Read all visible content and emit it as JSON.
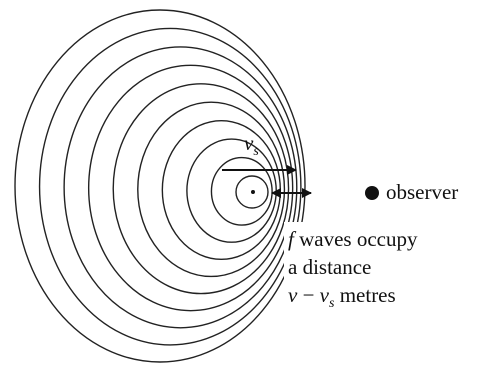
{
  "diagram": {
    "source_speed_label": {
      "symbol": "v",
      "subscript": "s"
    },
    "observer_label": "observer",
    "caption": {
      "line1": {
        "symbol": "f",
        "text": " waves occupy"
      },
      "line2": {
        "text": "a distance"
      },
      "line3": {
        "symbol": "v",
        "minus": " − ",
        "symbol2": "v",
        "subscript": "s",
        "text": " metres"
      }
    }
  }
}
